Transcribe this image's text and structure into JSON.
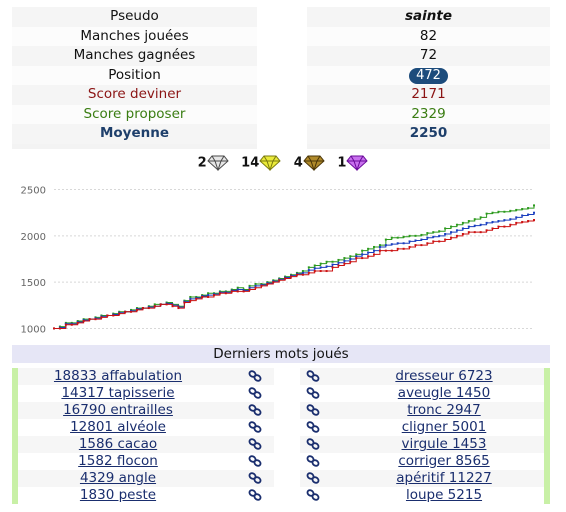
{
  "stats": {
    "labels": [
      "Pseudo",
      "Manches jouées",
      "Manches gagnées",
      "Position",
      "Score deviner",
      "Score proposer",
      "Moyenne"
    ],
    "values": [
      "sainte",
      "82",
      "72",
      "472",
      "2171",
      "2329",
      "2250"
    ]
  },
  "gems": [
    {
      "count": "2",
      "color": "#9a9a9a",
      "icon": "diamond-icon"
    },
    {
      "count": "14",
      "color": "#d8d81e",
      "icon": "diamond-icon"
    },
    {
      "count": "4",
      "color": "#7a5a10",
      "icon": "diamond-icon"
    },
    {
      "count": "1",
      "color": "#a020d0",
      "icon": "diamond-icon"
    }
  ],
  "chart_data": {
    "type": "line",
    "yticks": [
      "2500",
      "2000",
      "1500",
      "1000"
    ],
    "ylim": [
      940,
      2560
    ],
    "x": [
      0,
      1,
      2,
      3,
      4,
      5,
      6,
      7,
      8,
      9,
      10,
      11,
      12,
      13,
      14,
      15,
      16,
      17,
      18,
      19,
      20,
      21,
      22,
      23,
      24,
      25,
      26,
      27,
      28,
      29,
      30,
      31,
      32,
      33,
      34,
      35,
      36,
      37,
      38,
      39,
      40,
      41,
      42,
      43,
      44,
      45,
      46,
      47,
      48,
      49,
      50,
      51,
      52,
      53,
      54,
      55,
      56,
      57,
      58,
      59,
      60,
      61,
      62,
      63,
      64,
      65,
      66,
      67,
      68,
      69,
      70,
      71,
      72,
      73,
      74,
      75,
      76,
      77,
      78,
      79,
      80,
      81
    ],
    "series": [
      {
        "color": "#2d9a1e",
        "values": [
          1000,
          1020,
          1060,
          1060,
          1080,
          1100,
          1100,
          1120,
          1140,
          1140,
          1160,
          1180,
          1180,
          1200,
          1220,
          1220,
          1240,
          1260,
          1260,
          1280,
          1260,
          1240,
          1300,
          1340,
          1340,
          1360,
          1380,
          1380,
          1400,
          1400,
          1420,
          1440,
          1420,
          1460,
          1480,
          1480,
          1500,
          1520,
          1540,
          1560,
          1580,
          1600,
          1620,
          1660,
          1680,
          1700,
          1720,
          1720,
          1740,
          1760,
          1780,
          1800,
          1840,
          1860,
          1880,
          1900,
          1960,
          1980,
          1980,
          1990,
          2000,
          2000,
          2010,
          2030,
          2040,
          2050,
          2080,
          2100,
          2120,
          2140,
          2160,
          2180,
          2200,
          2240,
          2250,
          2260,
          2260,
          2270,
          2280,
          2290,
          2300,
          2329
        ]
      },
      {
        "color": "#1b3fbf",
        "values": [
          1000,
          1010,
          1050,
          1050,
          1070,
          1090,
          1100,
          1110,
          1130,
          1140,
          1150,
          1170,
          1180,
          1190,
          1210,
          1220,
          1230,
          1240,
          1260,
          1270,
          1250,
          1230,
          1290,
          1320,
          1330,
          1350,
          1360,
          1370,
          1390,
          1390,
          1410,
          1420,
          1410,
          1440,
          1460,
          1470,
          1490,
          1510,
          1530,
          1550,
          1570,
          1590,
          1600,
          1630,
          1650,
          1660,
          1670,
          1690,
          1710,
          1730,
          1750,
          1780,
          1800,
          1820,
          1840,
          1880,
          1900,
          1910,
          1920,
          1920,
          1940,
          1950,
          1960,
          1980,
          1990,
          2000,
          2020,
          2040,
          2060,
          2080,
          2100,
          2110,
          2120,
          2140,
          2150,
          2160,
          2170,
          2180,
          2200,
          2220,
          2230,
          2250
        ]
      },
      {
        "color": "#cc1111",
        "values": [
          1000,
          1000,
          1040,
          1040,
          1060,
          1080,
          1100,
          1100,
          1120,
          1140,
          1140,
          1160,
          1180,
          1180,
          1200,
          1220,
          1220,
          1240,
          1260,
          1260,
          1240,
          1220,
          1280,
          1300,
          1320,
          1340,
          1340,
          1360,
          1380,
          1380,
          1400,
          1400,
          1400,
          1420,
          1440,
          1460,
          1480,
          1500,
          1520,
          1540,
          1560,
          1580,
          1580,
          1600,
          1620,
          1620,
          1620,
          1660,
          1680,
          1700,
          1720,
          1760,
          1760,
          1780,
          1800,
          1840,
          1840,
          1840,
          1860,
          1860,
          1880,
          1900,
          1900,
          1920,
          1940,
          1940,
          1960,
          1980,
          2000,
          2020,
          2040,
          2040,
          2040,
          2060,
          2080,
          2100,
          2100,
          2120,
          2140,
          2150,
          2160,
          2171
        ]
      }
    ]
  },
  "recent": {
    "title": "Derniers mots joués",
    "left": [
      "18833 affabulation",
      "14317 tapisserie",
      "16790 entrailles",
      "12801 alvéole",
      "1586 cacao",
      "1582 flocon",
      "4329 angle",
      "1830 peste"
    ],
    "right": [
      "dresseur 6723",
      "aveugle 1450",
      "tronc 2947",
      "cligner 5001",
      "virgule 1453",
      "corriger 8565",
      "apéritif 11227",
      "loupe 5215"
    ]
  },
  "colors": {
    "accent": "#1d4c7c",
    "list_border": "#c8f0a6",
    "header_bg": "#e6e6f6"
  }
}
